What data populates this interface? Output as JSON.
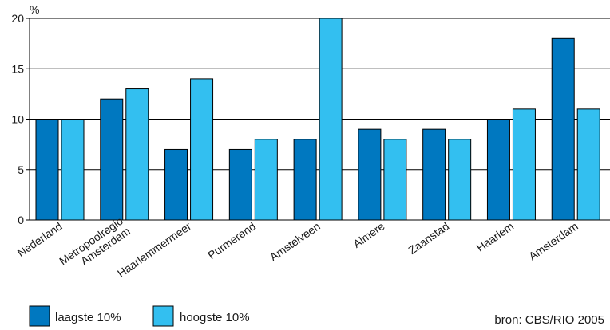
{
  "chart_data": {
    "type": "bar",
    "ylabel": "%",
    "ylim": [
      0,
      20
    ],
    "yticks": [
      "0",
      "5",
      "10",
      "15",
      "20"
    ],
    "grid": true,
    "categories": [
      [
        "Nederland"
      ],
      [
        "Metropoolregio",
        "Amsterdam"
      ],
      [
        "Haarlemmermeer"
      ],
      [
        "Purmerend"
      ],
      [
        "Amstelveen"
      ],
      [
        "Almere"
      ],
      [
        "Zaanstad"
      ],
      [
        "Haarlem"
      ],
      [
        "Amsterdam"
      ]
    ],
    "series": [
      {
        "name": "laagste 10%",
        "color": "#0078c0",
        "values": [
          10,
          12,
          7,
          7,
          8,
          9,
          9,
          10,
          18
        ]
      },
      {
        "name": "hoogste 10%",
        "color": "#33bff0",
        "values": [
          10,
          13,
          14,
          8,
          20,
          8,
          8,
          11,
          11
        ]
      }
    ],
    "legend_position": "bottom-left",
    "source": "bron: CBS/RIO 2005"
  }
}
